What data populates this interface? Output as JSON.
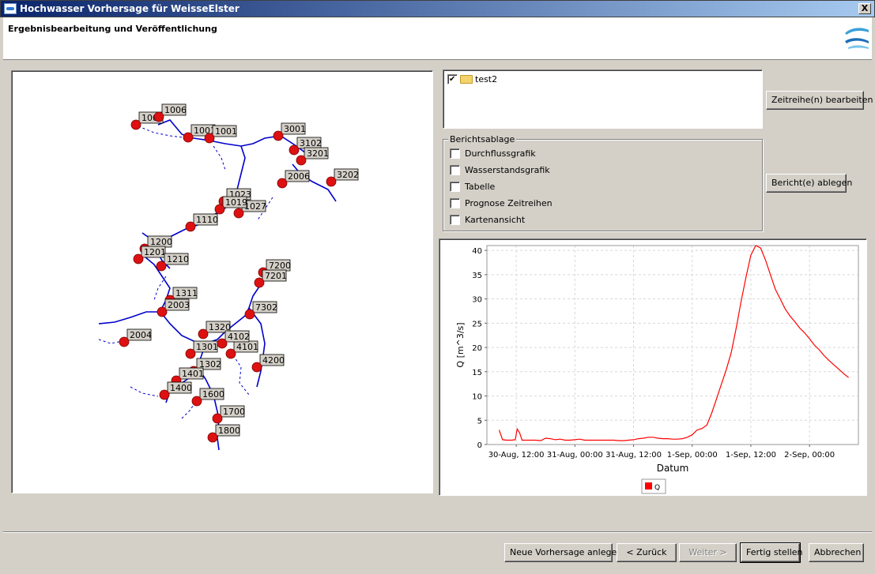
{
  "window": {
    "title": "Hochwasser Vorhersage für WeisseElster",
    "close_label": "X"
  },
  "header": {
    "subtitle": "Ergebnisbearbeitung und Veröffentlichung"
  },
  "map": {
    "station_labels": [
      "1006",
      "1006",
      "1001",
      "1001",
      "3001",
      "3102",
      "3201",
      "3202",
      "2006",
      "1027",
      "1023",
      "1019",
      "1110",
      "1200",
      "1201",
      "1210",
      "1311",
      "2003",
      "2004",
      "1320",
      "1301",
      "1302",
      "1401",
      "1400",
      "1600",
      "1700",
      "1800",
      "7200",
      "7201",
      "7302",
      "4200",
      "4101",
      "4102"
    ]
  },
  "tree": {
    "items": [
      {
        "label": "test2",
        "checked": true
      }
    ]
  },
  "buttons": {
    "edit_series": "Zeitreihe(n) bearbeiten",
    "store_report": "Bericht(e) ablegen",
    "new_forecast": "Neue Vorhersage anlegen",
    "back": "< Zurück",
    "next": "Weiter >",
    "finish": "Fertig stellen",
    "cancel": "Abbrechen"
  },
  "report_group": {
    "title": "Berichtsablage",
    "options": [
      {
        "label": "Durchflussgrafik",
        "checked": false
      },
      {
        "label": "Wasserstandsgrafik",
        "checked": false
      },
      {
        "label": "Tabelle",
        "checked": false
      },
      {
        "label": "Prognose Zeitreihen",
        "checked": false
      },
      {
        "label": "Kartenansicht",
        "checked": false
      }
    ]
  },
  "colors": {
    "series": "#ff0000",
    "river": "#0000cc",
    "station": "#dd1111"
  },
  "chart_data": {
    "type": "line",
    "xlabel": "Datum",
    "ylabel": "Q [m^3/s]",
    "ylim": [
      0,
      41
    ],
    "yticks": [
      0,
      5,
      10,
      15,
      20,
      25,
      30,
      35,
      40
    ],
    "xticks": [
      "30-Aug, 12:00",
      "31-Aug, 00:00",
      "31-Aug, 12:00",
      "1-Sep, 00:00",
      "1-Sep, 12:00",
      "2-Sep, 00:00"
    ],
    "xtick_hours": [
      12,
      24,
      36,
      48,
      60,
      72
    ],
    "x_hours": [
      8.5,
      9.2,
      10.0,
      11.0,
      11.8,
      12.2,
      12.7,
      13.2,
      14,
      15,
      16,
      17,
      18,
      19,
      20,
      21,
      22,
      23,
      24,
      25,
      26,
      27,
      28,
      29,
      30,
      31,
      32,
      33,
      34,
      35,
      36,
      37,
      38,
      39,
      40,
      41,
      42,
      43,
      44,
      45,
      46,
      47,
      48,
      49,
      50,
      51,
      52,
      53,
      54,
      55,
      56,
      57,
      58,
      59,
      60,
      60.5,
      61,
      62,
      63,
      64,
      65,
      66,
      67,
      68,
      69,
      70,
      71,
      72,
      73,
      74,
      75,
      76,
      77,
      78,
      79,
      80
    ],
    "series": [
      {
        "name": "Q",
        "values": [
          3.0,
          1.0,
          0.9,
          0.9,
          1.0,
          3.2,
          2.4,
          0.9,
          0.9,
          0.9,
          0.9,
          0.8,
          1.3,
          1.2,
          1.0,
          1.1,
          0.9,
          0.9,
          1.0,
          1.1,
          0.9,
          0.9,
          0.9,
          0.9,
          0.9,
          0.9,
          0.9,
          0.8,
          0.8,
          0.9,
          1.0,
          1.2,
          1.3,
          1.5,
          1.5,
          1.3,
          1.2,
          1.2,
          1.1,
          1.1,
          1.2,
          1.5,
          2.0,
          3.0,
          3.3,
          4.0,
          6.5,
          9.5,
          12.5,
          15.5,
          19.0,
          24.0,
          29.5,
          34.5,
          39.0,
          40.0,
          41.0,
          40.5,
          38.0,
          35.0,
          32.0,
          30.0,
          28.0,
          26.5,
          25.3,
          24.0,
          23.0,
          21.8,
          20.5,
          19.5,
          18.3,
          17.3,
          16.4,
          15.5,
          14.6,
          13.8
        ]
      }
    ],
    "grid": true,
    "legend_position": "bottom-center"
  }
}
